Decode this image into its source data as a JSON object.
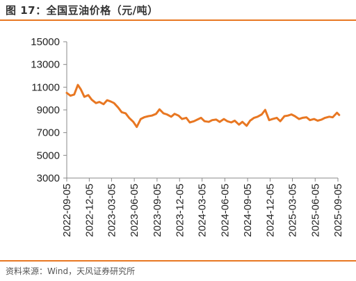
{
  "header": {
    "title": "图 17：全国豆油价格（元/吨）"
  },
  "footer": {
    "source": "资料来源：Wind，天风证券研究所"
  },
  "colors": {
    "accent": "#e87722",
    "series": "#e87722"
  },
  "chart_data": {
    "type": "line",
    "title": "全国豆油价格（元/吨）",
    "xlabel": "",
    "ylabel": "",
    "ylim": [
      3000,
      15000
    ],
    "yticks": [
      3000,
      5000,
      7000,
      9000,
      11000,
      13000,
      15000
    ],
    "xticks": [
      "2022-09-05",
      "2022-12-05",
      "2023-03-05",
      "2023-06-05",
      "2023-09-05",
      "2023-12-05",
      "2024-03-05",
      "2024-06-05",
      "2024-09-05",
      "2024-12-05",
      "2025-03-05",
      "2025-06-05",
      "2025-09-05"
    ],
    "grid": false,
    "legend": "none",
    "series": [
      {
        "x": [
          "2022-09-05",
          "2022-09-20",
          "2022-10-05",
          "2022-10-20",
          "2022-11-01",
          "2022-11-15",
          "2022-12-01",
          "2022-12-15",
          "2023-01-01",
          "2023-01-15",
          "2023-02-01",
          "2023-02-15",
          "2023-03-01",
          "2023-03-15",
          "2023-04-01",
          "2023-04-15",
          "2023-05-01",
          "2023-05-15",
          "2023-06-01",
          "2023-06-15",
          "2023-07-01",
          "2023-07-15",
          "2023-08-01",
          "2023-08-15",
          "2023-09-01",
          "2023-09-15",
          "2023-10-01",
          "2023-10-15",
          "2023-11-01",
          "2023-11-15",
          "2023-12-01",
          "2023-12-15",
          "2024-01-01",
          "2024-01-15",
          "2024-02-01",
          "2024-02-15",
          "2024-03-01",
          "2024-03-15",
          "2024-04-01",
          "2024-04-15",
          "2024-05-01",
          "2024-05-15",
          "2024-06-01",
          "2024-06-15",
          "2024-07-01",
          "2024-07-15",
          "2024-08-01",
          "2024-08-15",
          "2024-09-01",
          "2024-09-15",
          "2024-10-01",
          "2024-10-15",
          "2024-11-01",
          "2024-11-15",
          "2024-12-01",
          "2024-12-15",
          "2025-01-01",
          "2025-01-15",
          "2025-02-01",
          "2025-02-15",
          "2025-03-01",
          "2025-03-15",
          "2025-04-01",
          "2025-04-15",
          "2025-05-01",
          "2025-05-15",
          "2025-06-01",
          "2025-06-15",
          "2025-07-01",
          "2025-07-15",
          "2025-08-01",
          "2025-08-15",
          "2025-09-01",
          "2025-09-10"
        ],
        "values": [
          10500,
          10250,
          10350,
          11200,
          10800,
          10150,
          10300,
          9900,
          9600,
          9700,
          9500,
          9850,
          9750,
          9600,
          9200,
          8800,
          8700,
          8300,
          7950,
          7500,
          8200,
          8350,
          8450,
          8500,
          8650,
          9050,
          8700,
          8600,
          8400,
          8650,
          8500,
          8200,
          8300,
          7900,
          8000,
          8150,
          8300,
          8000,
          7950,
          8100,
          8150,
          7950,
          8200,
          8000,
          7900,
          8050,
          7700,
          7950,
          7600,
          8050,
          8300,
          8400,
          8600,
          9000,
          8100,
          8200,
          8300,
          8000,
          8450,
          8500,
          8600,
          8450,
          8200,
          8300,
          8350,
          8100,
          8200,
          8050,
          8150,
          8300,
          8400,
          8350,
          8750,
          8550
        ]
      }
    ]
  }
}
